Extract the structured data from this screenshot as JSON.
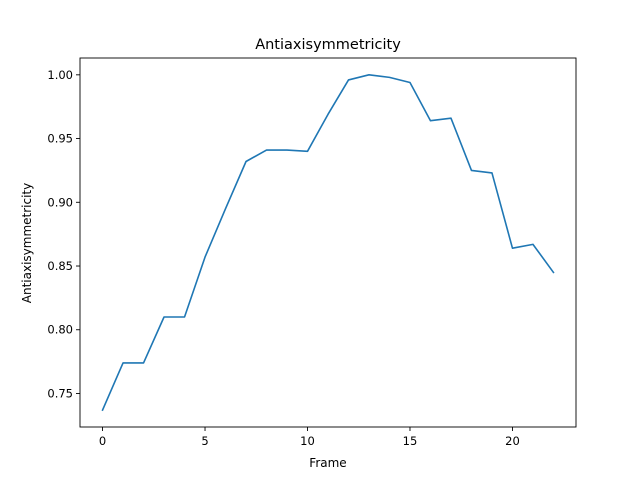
{
  "chart_data": {
    "type": "line",
    "title": "Antiaxisymmetricity",
    "xlabel": "Frame",
    "ylabel": "Antiaxisymmetricity",
    "xlim": [
      -1.1,
      23.1
    ],
    "ylim": [
      0.7237,
      1.0132
    ],
    "xticks": [
      0,
      5,
      10,
      15,
      20
    ],
    "yticks": [
      0.75,
      0.8,
      0.85,
      0.9,
      0.95,
      1.0
    ],
    "ytick_labels": [
      "0.75",
      "0.80",
      "0.85",
      "0.90",
      "0.95",
      "1.00"
    ],
    "grid": false,
    "series": [
      {
        "color": "#1f77b4",
        "x": [
          0,
          1,
          2,
          3,
          4,
          5,
          6,
          7,
          8,
          9,
          10,
          11,
          12,
          13,
          14,
          15,
          16,
          17,
          18,
          19,
          20,
          21,
          22
        ],
        "values": [
          0.737,
          0.774,
          0.774,
          0.81,
          0.81,
          0.857,
          0.895,
          0.932,
          0.941,
          0.941,
          0.94,
          0.969,
          0.996,
          1.0,
          0.998,
          0.994,
          0.964,
          0.966,
          0.925,
          0.923,
          0.864,
          0.867,
          0.845
        ]
      }
    ]
  }
}
